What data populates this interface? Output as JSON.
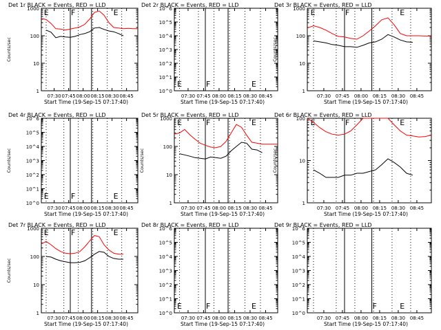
{
  "chart_data": [
    {
      "type": "line",
      "title": "Det 1r BLACK = Events, RED = LLD",
      "xlabel": "Start Time (19-Sep-15 07:17:40)",
      "ylabel": "Counts/sec",
      "ylim": [
        1,
        1000
      ],
      "yscale": "log",
      "x_ticks": [
        "07:30",
        "07:45",
        "08:00",
        "08:15",
        "08:30",
        "08:45"
      ],
      "y_ticks": [
        "1",
        "10",
        "100",
        "1000"
      ],
      "markers": [
        "E",
        "F",
        "E"
      ],
      "series": [
        {
          "name": "RED = LLD",
          "color": "#ff0000",
          "x": [
            0,
            5,
            10,
            15,
            20,
            25,
            30,
            35,
            40,
            45,
            50,
            55,
            60,
            65,
            70,
            75,
            80,
            85,
            90,
            95,
            100
          ],
          "y": [
            420,
            390,
            280,
            180,
            175,
            160,
            175,
            190,
            210,
            260,
            400,
            700,
            800,
            560,
            300,
            200,
            190,
            180,
            185,
            180,
            180
          ]
        },
        {
          "name": "BLACK = Events",
          "color": "#000000",
          "x": [
            5,
            10,
            15,
            20,
            25,
            30,
            35,
            40,
            45,
            50,
            55,
            60,
            65,
            70,
            75,
            80,
            85
          ],
          "y": [
            160,
            135,
            85,
            95,
            90,
            88,
            95,
            110,
            120,
            140,
            190,
            200,
            170,
            150,
            140,
            120,
            100
          ]
        }
      ]
    },
    {
      "type": "line",
      "title": "Det 2r BLACK = Events, RED = LLD",
      "xlabel": "Start Time (19-Sep-15 07:17:40)",
      "ylabel": "",
      "ylim": [
        1,
        1000000
      ],
      "yscale": "log",
      "x_ticks": [
        "07:30",
        "07:45",
        "08:00",
        "08:15",
        "08:30",
        "08:45"
      ],
      "y_ticks": [
        "10^0",
        "10^1",
        "10^2",
        "10^3",
        "10^4",
        "10^5",
        "10^6"
      ],
      "markers": [
        "E",
        "F",
        "E"
      ],
      "series": []
    },
    {
      "type": "line",
      "title": "Det 3r BLACK = Events, RED = LLD",
      "xlabel": "Start Time (19-Sep-15 07:17:40)",
      "ylabel": "Counts/sec",
      "ylim": [
        1,
        1000
      ],
      "yscale": "log",
      "x_ticks": [
        "07:30",
        "07:45",
        "08:00",
        "08:15",
        "08:30",
        "08:45"
      ],
      "y_ticks": [
        "1",
        "10",
        "100",
        "1000"
      ],
      "markers": [
        "E",
        "F",
        "E"
      ],
      "series": [
        {
          "name": "RED = LLD",
          "color": "#ff0000",
          "x": [
            0,
            5,
            10,
            15,
            20,
            25,
            30,
            35,
            40,
            45,
            50,
            55,
            60,
            65,
            70,
            75,
            80,
            85,
            90,
            95,
            100
          ],
          "y": [
            190,
            230,
            200,
            160,
            120,
            95,
            90,
            80,
            75,
            100,
            150,
            230,
            380,
            450,
            250,
            120,
            100,
            100,
            100,
            98,
            98
          ]
        },
        {
          "name": "BLACK = Events",
          "color": "#000000",
          "x": [
            5,
            10,
            15,
            20,
            25,
            30,
            35,
            40,
            45,
            50,
            55,
            60,
            65,
            70,
            75,
            80,
            85
          ],
          "y": [
            65,
            60,
            55,
            48,
            45,
            40,
            40,
            38,
            45,
            55,
            60,
            75,
            110,
            90,
            70,
            60,
            58
          ]
        }
      ]
    },
    {
      "type": "line",
      "title": "Det 4r BLACK = Events, RED = LLD",
      "xlabel": "Start Time (19-Sep-15 07:17:40)",
      "ylabel": "Counts/sec",
      "ylim": [
        1,
        1000000
      ],
      "yscale": "log",
      "x_ticks": [
        "07:30",
        "07:45",
        "08:00",
        "08:15",
        "08:30",
        "08:45"
      ],
      "y_ticks": [
        "10^0",
        "10^1",
        "10^2",
        "10^3",
        "10^4",
        "10^5",
        "10^6"
      ],
      "markers": [
        "E",
        "F",
        "E"
      ],
      "series": []
    },
    {
      "type": "line",
      "title": "Det 5r BLACK = Events, RED = LLD",
      "xlabel": "Start Time (19-Sep-15 07:17:40)",
      "ylabel": "Counts/sec",
      "ylim": [
        1,
        1000
      ],
      "yscale": "log",
      "x_ticks": [
        "07:30",
        "07:45",
        "08:00",
        "08:15",
        "08:30",
        "08:45"
      ],
      "y_ticks": [
        "1",
        "10",
        "100",
        "1000"
      ],
      "markers": [
        "E",
        "F",
        "E"
      ],
      "series": [
        {
          "name": "RED = LLD",
          "color": "#ff0000",
          "x": [
            0,
            5,
            10,
            15,
            20,
            25,
            30,
            35,
            40,
            45,
            50,
            55,
            60,
            65,
            70,
            75,
            80,
            85,
            90,
            95,
            100
          ],
          "y": [
            270,
            300,
            400,
            260,
            180,
            130,
            110,
            95,
            90,
            100,
            150,
            300,
            600,
            480,
            250,
            140,
            130,
            120,
            120,
            120,
            120
          ]
        },
        {
          "name": "BLACK = Events",
          "color": "#000000",
          "x": [
            5,
            10,
            15,
            20,
            25,
            30,
            35,
            40,
            45,
            50,
            55,
            60,
            65,
            70,
            75,
            80,
            85
          ],
          "y": [
            55,
            50,
            45,
            40,
            38,
            36,
            42,
            40,
            38,
            45,
            70,
            100,
            140,
            130,
            80,
            75,
            60
          ]
        }
      ]
    },
    {
      "type": "line",
      "title": "Det 6r BLACK = Events, RED = LLD",
      "xlabel": "Start Time (19-Sep-15 07:17:40)",
      "ylabel": "Counts/sec",
      "ylim": [
        1,
        100
      ],
      "yscale": "log",
      "x_ticks": [
        "07:30",
        "07:45",
        "08:00",
        "08:15",
        "08:30",
        "08:45"
      ],
      "y_ticks": [
        "1",
        "10",
        "100"
      ],
      "markers": [
        "E",
        "F",
        "E"
      ],
      "series": [
        {
          "name": "RED = LLD",
          "color": "#ff0000",
          "x": [
            0,
            5,
            10,
            15,
            20,
            25,
            30,
            35,
            40,
            45,
            50,
            55,
            60,
            65,
            70,
            75,
            80,
            85,
            90,
            95,
            100
          ],
          "y": [
            100,
            80,
            60,
            48,
            42,
            40,
            42,
            50,
            70,
            100,
            100,
            100,
            100,
            100,
            70,
            50,
            40,
            38,
            36,
            37,
            40
          ]
        },
        {
          "name": "BLACK = Events",
          "color": "#000000",
          "x": [
            5,
            10,
            15,
            20,
            25,
            30,
            35,
            40,
            45,
            50,
            55,
            60,
            65,
            70,
            75,
            80,
            85
          ],
          "y": [
            6,
            5,
            4,
            4,
            4,
            4.5,
            4.5,
            5,
            5,
            5.5,
            6,
            8,
            11,
            9,
            7,
            5,
            4.5
          ]
        }
      ]
    },
    {
      "type": "line",
      "title": "Det 7r BLACK = Events, RED = LLD",
      "xlabel": "Start Time (19-Sep-15 07:17:40)",
      "ylabel": "Counts/sec",
      "ylim": [
        1,
        1000
      ],
      "yscale": "log",
      "x_ticks": [
        "07:30",
        "07:45",
        "08:00",
        "08:15",
        "08:30",
        "08:45"
      ],
      "y_ticks": [
        "1",
        "10",
        "100",
        "1000"
      ],
      "markers": [
        "E",
        "F",
        "E"
      ],
      "series": [
        {
          "name": "RED = LLD",
          "color": "#ff0000",
          "x": [
            0,
            5,
            10,
            15,
            20,
            25,
            30,
            35,
            40,
            45,
            50,
            55,
            60,
            65,
            70,
            75,
            80,
            85
          ],
          "y": [
            280,
            340,
            260,
            190,
            150,
            130,
            125,
            130,
            150,
            220,
            350,
            550,
            500,
            260,
            170,
            130,
            120,
            120
          ]
        },
        {
          "name": "BLACK = Events",
          "color": "#000000",
          "x": [
            5,
            10,
            15,
            20,
            25,
            30,
            35,
            40,
            45,
            50,
            55,
            60,
            65,
            70,
            75,
            80,
            85
          ],
          "y": [
            100,
            95,
            80,
            70,
            65,
            60,
            60,
            62,
            70,
            90,
            120,
            150,
            140,
            100,
            85,
            80,
            80
          ]
        }
      ]
    },
    {
      "type": "line",
      "title": "Det 8r BLACK = Events, RED = LLD",
      "xlabel": "Start Time (19-Sep-15 07:17:40)",
      "ylabel": "",
      "ylim": [
        1,
        1000000
      ],
      "yscale": "log",
      "x_ticks": [
        "07:30",
        "07:45",
        "08:00",
        "08:15",
        "08:30",
        "08:45"
      ],
      "y_ticks": [
        "10^0",
        "10^1",
        "10^2",
        "10^3",
        "10^4",
        "10^5",
        "10^6"
      ],
      "markers": [
        "E",
        "F",
        "E"
      ],
      "series": []
    },
    {
      "type": "line",
      "title": "Det 9r BLACK = Events, RED = LLD",
      "xlabel": "Start Time (19-Sep-15 07:17:40)",
      "ylabel": "",
      "ylim": [
        1,
        1000000
      ],
      "yscale": "log",
      "x_ticks": [
        "07:30",
        "07:45",
        "08:00",
        "08:15",
        "08:30",
        "08:45"
      ],
      "y_ticks": [
        "10^0",
        "10^1",
        "10^2",
        "10^3",
        "10^4",
        "10^5",
        "10^6"
      ],
      "markers": [
        "F",
        "E"
      ],
      "series": []
    }
  ]
}
